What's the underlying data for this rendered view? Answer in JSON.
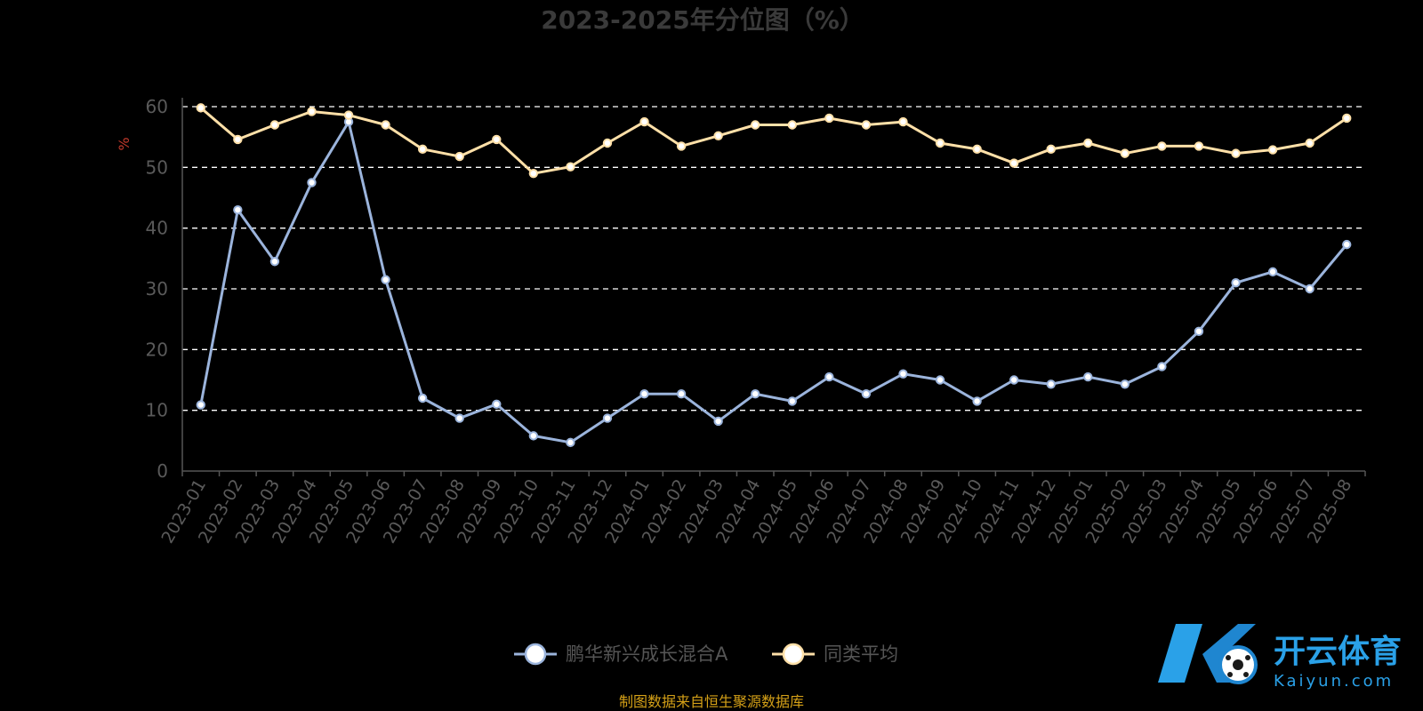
{
  "title": "2023-2025年分位图（%）",
  "source_note": "制图数据来自恒生聚源数据库",
  "watermark": {
    "brand_cn": "开云体育",
    "brand_en": "Kaiyun.com",
    "logo_letter": "K"
  },
  "colors": {
    "series_1": "#9bb4dc",
    "series_2": "#ffe0a8",
    "grid": "#ffffff",
    "unit": "#c0392b",
    "source": "#d4a017",
    "brand": "#2aa1e8"
  },
  "chart_data": {
    "type": "line",
    "title": "2023-2025年分位图（%）",
    "ylabel": "%",
    "ylim": [
      0,
      60
    ],
    "yticks": [
      0,
      10,
      20,
      30,
      40,
      50,
      60
    ],
    "grid": true,
    "legend_position": "bottom",
    "categories": [
      "2023-01",
      "2023-02",
      "2023-03",
      "2023-04",
      "2023-05",
      "2023-06",
      "2023-07",
      "2023-08",
      "2023-09",
      "2023-10",
      "2023-11",
      "2023-12",
      "2024-01",
      "2024-02",
      "2024-03",
      "2024-04",
      "2024-05",
      "2024-06",
      "2024-07",
      "2024-08",
      "2024-09",
      "2024-10",
      "2024-11",
      "2024-12",
      "2025-01",
      "2025-02",
      "2025-03",
      "2025-04",
      "2025-05",
      "2025-06",
      "2025-07",
      "2025-08"
    ],
    "series": [
      {
        "name": "鹏华新兴成长混合A",
        "values": [
          10.9,
          43.0,
          34.5,
          47.5,
          57.5,
          31.5,
          12.0,
          8.7,
          11.0,
          5.8,
          4.7,
          8.7,
          12.7,
          12.7,
          8.2,
          12.7,
          11.5,
          15.5,
          12.7,
          16.0,
          15.0,
          11.5,
          15.0,
          14.3,
          15.5,
          14.3,
          17.2,
          23.0,
          31.0,
          32.8,
          30.0,
          37.3
        ]
      },
      {
        "name": "同类平均",
        "values": [
          59.8,
          54.6,
          57.0,
          59.2,
          58.6,
          57.0,
          53.0,
          51.8,
          54.6,
          49.0,
          50.1,
          54.0,
          57.5,
          53.5,
          55.2,
          57.0,
          57.0,
          58.1,
          57.0,
          57.5,
          54.0,
          53.0,
          50.7,
          53.0,
          54.0,
          52.3,
          53.5,
          53.5,
          52.3,
          52.9,
          54.0,
          58.1
        ]
      }
    ]
  }
}
